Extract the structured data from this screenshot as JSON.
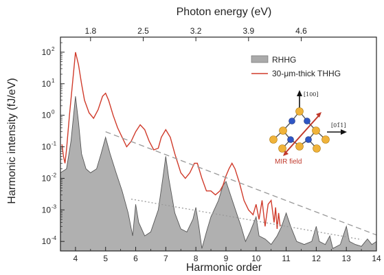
{
  "chart_data": {
    "type": "area",
    "xlabel": "Harmonic order",
    "x2label": "Photon energy (eV)",
    "ylabel": "Harmonic intensity (fJ/eV)",
    "xlim": [
      3.5,
      14
    ],
    "ylim": [
      5e-05,
      300
    ],
    "yscale": "log",
    "x_ticks": [
      4,
      5,
      6,
      7,
      8,
      9,
      10,
      11,
      12,
      13,
      14
    ],
    "top_axis": {
      "ticks": [
        {
          "h": 4.5,
          "label": "1.8"
        },
        {
          "h": 6.25,
          "label": "2.5"
        },
        {
          "h": 8.0,
          "label": "3.2"
        },
        {
          "h": 9.75,
          "label": "3.9"
        },
        {
          "h": 11.5,
          "label": "4.6"
        }
      ]
    },
    "y_ticks": [
      {
        "v": 0.0001,
        "base": "10",
        "exp": "-4"
      },
      {
        "v": 0.001,
        "base": "10",
        "exp": "-3"
      },
      {
        "v": 0.01,
        "base": "10",
        "exp": "-2"
      },
      {
        "v": 0.1,
        "base": "10",
        "exp": "-1"
      },
      {
        "v": 1,
        "base": "10",
        "exp": "0"
      },
      {
        "v": 10,
        "base": "10",
        "exp": "1"
      },
      {
        "v": 100,
        "base": "10",
        "exp": "2"
      }
    ],
    "legend": {
      "position": "top-right",
      "entries": [
        {
          "name": "RHHG",
          "color": "#aaaaaa",
          "style": "fill"
        },
        {
          "name": "30-μm-thick THHG",
          "color": "#d03a2a",
          "style": "line"
        }
      ]
    },
    "series": [
      {
        "name": "RHHG",
        "style": "area",
        "color": "#b0b0b0",
        "edge": "#555555",
        "points": [
          [
            3.5,
            0.015
          ],
          [
            3.7,
            0.02
          ],
          [
            3.85,
            0.15
          ],
          [
            4.0,
            4.0
          ],
          [
            4.1,
            0.6
          ],
          [
            4.2,
            0.06
          ],
          [
            4.35,
            0.02
          ],
          [
            4.5,
            0.015
          ],
          [
            4.7,
            0.02
          ],
          [
            4.85,
            0.06
          ],
          [
            5.0,
            0.2
          ],
          [
            5.15,
            0.06
          ],
          [
            5.35,
            0.015
          ],
          [
            5.55,
            0.004
          ],
          [
            5.75,
            0.0008
          ],
          [
            5.9,
            0.00015
          ],
          [
            6.0,
            0.0015
          ],
          [
            6.1,
            0.0004
          ],
          [
            6.3,
            0.00015
          ],
          [
            6.5,
            0.0002
          ],
          [
            6.75,
            0.001
          ],
          [
            6.9,
            0.01
          ],
          [
            7.0,
            0.05
          ],
          [
            7.1,
            0.01
          ],
          [
            7.3,
            0.0008
          ],
          [
            7.5,
            0.00025
          ],
          [
            7.7,
            0.0002
          ],
          [
            7.9,
            0.0005
          ],
          [
            8.0,
            0.0012
          ],
          [
            8.1,
            0.0003
          ],
          [
            8.2,
            6e-05
          ],
          [
            8.35,
            0.0002
          ],
          [
            8.5,
            0.0006
          ],
          [
            8.75,
            0.002
          ],
          [
            8.9,
            0.006
          ],
          [
            9.0,
            0.008
          ],
          [
            9.15,
            0.003
          ],
          [
            9.35,
            0.0008
          ],
          [
            9.5,
            0.0003
          ],
          [
            9.65,
            0.0001
          ],
          [
            9.8,
            0.0002
          ],
          [
            10.0,
            0.0006
          ],
          [
            10.1,
            0.00015
          ],
          [
            10.3,
            0.00012
          ],
          [
            10.5,
            8e-05
          ],
          [
            10.7,
            0.00015
          ],
          [
            10.85,
            0.0003
          ],
          [
            11.0,
            0.0008
          ],
          [
            11.15,
            0.0003
          ],
          [
            11.35,
            0.0001
          ],
          [
            11.6,
            8e-05
          ],
          [
            11.85,
            0.0001
          ],
          [
            12.0,
            0.0003
          ],
          [
            12.1,
            0.0001
          ],
          [
            12.3,
            8e-05
          ],
          [
            12.45,
            0.00015
          ],
          [
            12.55,
            6e-05
          ],
          [
            12.8,
            8e-05
          ],
          [
            13.0,
            0.0003
          ],
          [
            13.1,
            0.0001
          ],
          [
            13.3,
            8e-05
          ],
          [
            13.5,
            7e-05
          ],
          [
            13.7,
            0.00012
          ],
          [
            13.85,
            8e-05
          ],
          [
            14.0,
            0.0001
          ]
        ]
      },
      {
        "name": "30-μm-thick THHG",
        "style": "line",
        "color": "#d03a2a",
        "points": [
          [
            3.55,
            0.12
          ],
          [
            3.6,
            0.05
          ],
          [
            3.65,
            0.03
          ],
          [
            3.7,
            0.08
          ],
          [
            3.8,
            1.0
          ],
          [
            3.9,
            10.0
          ],
          [
            4.0,
            100.0
          ],
          [
            4.1,
            40.0
          ],
          [
            4.2,
            10.0
          ],
          [
            4.3,
            3.0
          ],
          [
            4.45,
            1.2
          ],
          [
            4.6,
            0.8
          ],
          [
            4.75,
            1.5
          ],
          [
            4.9,
            4.0
          ],
          [
            5.0,
            5.0
          ],
          [
            5.1,
            3.0
          ],
          [
            5.25,
            1.0
          ],
          [
            5.4,
            0.4
          ],
          [
            5.55,
            0.2
          ],
          [
            5.7,
            0.1
          ],
          [
            5.85,
            0.15
          ],
          [
            6.0,
            0.3
          ],
          [
            6.15,
            0.5
          ],
          [
            6.3,
            0.35
          ],
          [
            6.45,
            0.15
          ],
          [
            6.6,
            0.08
          ],
          [
            6.75,
            0.09
          ],
          [
            6.85,
            0.2
          ],
          [
            7.0,
            0.35
          ],
          [
            7.15,
            0.2
          ],
          [
            7.3,
            0.06
          ],
          [
            7.5,
            0.015
          ],
          [
            7.65,
            0.01
          ],
          [
            7.8,
            0.015
          ],
          [
            7.95,
            0.03
          ],
          [
            8.05,
            0.03
          ],
          [
            8.2,
            0.01
          ],
          [
            8.35,
            0.004
          ],
          [
            8.5,
            0.004
          ],
          [
            8.65,
            0.003
          ],
          [
            8.8,
            0.004
          ],
          [
            8.9,
            0.006
          ],
          [
            9.0,
            0.012
          ],
          [
            9.1,
            0.02
          ],
          [
            9.2,
            0.03
          ],
          [
            9.3,
            0.02
          ],
          [
            9.45,
            0.007
          ],
          [
            9.6,
            0.002
          ],
          [
            9.75,
            0.001
          ],
          [
            9.9,
            0.0007
          ],
          [
            10.0,
            0.0015
          ],
          [
            10.1,
            0.0005
          ],
          [
            10.2,
            0.002
          ],
          [
            10.3,
            0.0003
          ],
          [
            10.4,
            0.0015
          ],
          [
            10.5,
            0.002
          ],
          [
            10.6,
            0.0004
          ],
          [
            10.65,
            0.0012
          ],
          [
            10.7,
            0.00025
          ],
          [
            10.75,
            0.0008
          ],
          [
            10.8,
            0.0003
          ]
        ]
      },
      {
        "name": "guide-upper",
        "style": "dashed",
        "color": "#999999",
        "points": [
          [
            5.0,
            0.3
          ],
          [
            14.0,
            0.00016
          ]
        ]
      },
      {
        "name": "guide-lower",
        "style": "dotted",
        "color": "#999999",
        "points": [
          [
            5.85,
            0.0022
          ],
          [
            13.5,
            0.000115
          ]
        ]
      }
    ],
    "annotations": {
      "direction_up": "[100]",
      "direction_right": "[01̄1]",
      "field_label": "MIR field"
    }
  }
}
